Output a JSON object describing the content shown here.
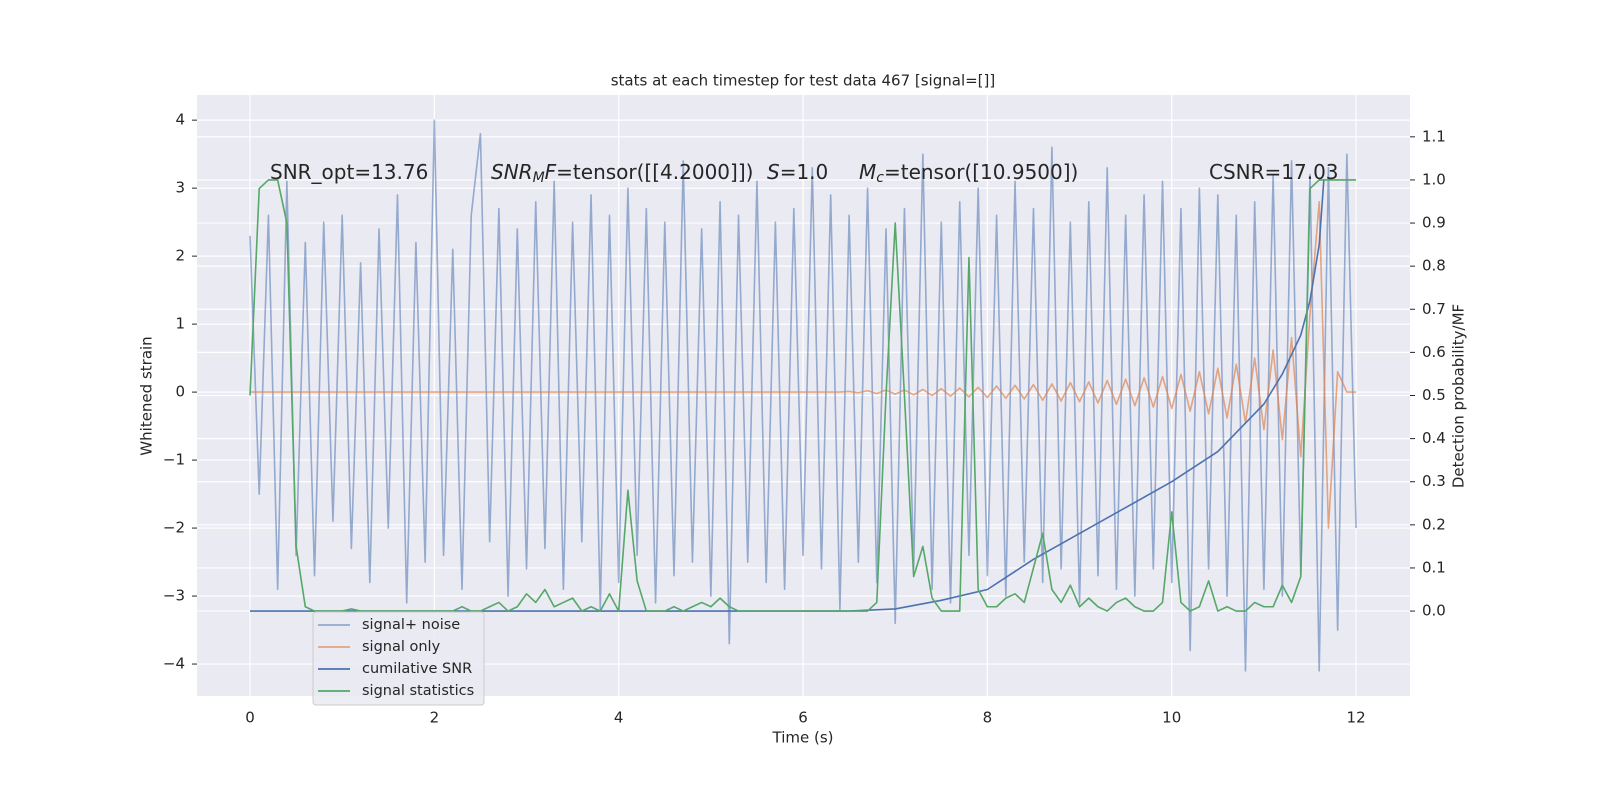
{
  "chart_data": {
    "type": "line",
    "title": "stats at each timestep for test data 467 [signal=[]]",
    "xlabel": "Time (s)",
    "ylabel": "Whitened strain",
    "y2label": "Detection probability/MF",
    "xlim": [
      -0.575,
      12.585
    ],
    "xticks": [
      0,
      2,
      4,
      6,
      8,
      10,
      12
    ],
    "ylim": [
      -4.47,
      4.37
    ],
    "yticks": [
      {
        "value": -4,
        "label": "−4"
      },
      {
        "value": -3,
        "label": "−3"
      },
      {
        "value": -2,
        "label": "−2"
      },
      {
        "value": -1,
        "label": "−1"
      },
      0,
      1,
      2,
      3,
      4
    ],
    "y2lim": [
      -0.197,
      1.197
    ],
    "y2ticks": [
      {
        "value": 0,
        "label": "0.0"
      },
      0.1,
      0.2,
      0.3,
      0.4,
      0.5,
      0.6,
      0.7,
      0.8,
      0.9,
      {
        "value": 1,
        "label": "1.0"
      },
      1.1
    ],
    "grid": true,
    "legend": "lower left",
    "x": [
      0,
      0.1,
      0.2,
      0.3,
      0.4,
      0.5,
      0.6,
      0.7,
      0.8,
      0.9,
      1,
      1.1,
      1.2,
      1.3,
      1.4,
      1.5,
      1.6,
      1.7,
      1.8,
      1.9,
      2,
      2.1,
      2.2,
      2.3,
      2.4,
      2.5,
      2.6,
      2.7,
      2.8,
      2.9,
      3,
      3.1,
      3.2,
      3.3,
      3.4,
      3.5,
      3.6,
      3.7,
      3.8,
      3.9,
      4,
      4.1,
      4.2,
      4.3,
      4.4,
      4.5,
      4.6,
      4.7,
      4.8,
      4.9,
      5,
      5.1,
      5.2,
      5.3,
      5.4,
      5.5,
      5.6,
      5.7,
      5.8,
      5.9,
      6,
      6.1,
      6.2,
      6.3,
      6.4,
      6.5,
      6.6,
      6.7,
      6.8,
      6.9,
      7,
      7.1,
      7.2,
      7.3,
      7.4,
      7.5,
      7.6,
      7.7,
      7.8,
      7.9,
      8,
      8.1,
      8.2,
      8.3,
      8.4,
      8.5,
      8.6,
      8.7,
      8.8,
      8.9,
      9,
      9.1,
      9.2,
      9.3,
      9.4,
      9.5,
      9.6,
      9.7,
      9.8,
      9.9,
      10,
      10.1,
      10.2,
      10.3,
      10.4,
      10.5,
      10.6,
      10.7,
      10.8,
      10.9,
      11,
      11.1,
      11.2,
      11.3,
      11.4,
      11.5,
      11.6,
      11.7,
      11.8,
      11.9,
      12
    ],
    "series": [
      {
        "name": "signal+ noise",
        "color": "#4c72b0",
        "opacity": 0.55,
        "values": [
          2.3,
          -1.5,
          2.6,
          -2.9,
          3.1,
          -2.4,
          2.2,
          -2.7,
          2.5,
          -1.9,
          2.6,
          -2.3,
          1.9,
          -2.8,
          2.4,
          -2.0,
          2.9,
          -3.1,
          2.2,
          -2.5,
          4.0,
          -2.4,
          2.1,
          -2.9,
          2.6,
          3.8,
          -2.2,
          2.7,
          -3.0,
          2.4,
          -2.6,
          2.8,
          -2.3,
          3.1,
          -2.9,
          2.5,
          -2.2,
          2.9,
          -3.2,
          2.6,
          -2.8,
          3.0,
          -2.4,
          2.7,
          -3.1,
          2.5,
          -2.7,
          3.4,
          -2.5,
          2.4,
          -3.0,
          2.8,
          -3.7,
          2.6,
          -2.5,
          3.1,
          -2.8,
          2.5,
          -2.9,
          2.7,
          -2.4,
          3.3,
          -2.6,
          2.9,
          -3.2,
          2.6,
          -2.5,
          3.0,
          -2.8,
          2.4,
          -3.4,
          2.7,
          -2.6,
          3.5,
          -2.9,
          2.5,
          -3.1,
          2.8,
          -2.4,
          3.0,
          -2.7,
          2.6,
          -3.0,
          3.1,
          -2.5,
          2.7,
          -2.8,
          3.6,
          -2.6,
          2.5,
          -3.1,
          2.8,
          -2.7,
          3.3,
          -2.9,
          2.6,
          -3.0,
          2.9,
          -2.6,
          3.1,
          -2.8,
          2.7,
          -3.8,
          3.0,
          -2.6,
          2.9,
          -3.0,
          2.6,
          -4.1,
          2.8,
          -2.9,
          3.2,
          -3.0,
          3.4,
          -2.7,
          3.2,
          -4.1,
          3.3,
          -3.5,
          3.5,
          -2.0
        ]
      },
      {
        "name": "signal only",
        "color": "#dd8452",
        "opacity": 0.7,
        "values": [
          0,
          0,
          0,
          0,
          0,
          0,
          0,
          0,
          0,
          0,
          0,
          0,
          0,
          0,
          0,
          0,
          0,
          0,
          0,
          0,
          0,
          0,
          0,
          0,
          0,
          0,
          0,
          0,
          0,
          0,
          0,
          0,
          0,
          0,
          0,
          0,
          0,
          0,
          0,
          0,
          0,
          0,
          0,
          0,
          0,
          0,
          0,
          0,
          0,
          0,
          0,
          0,
          0,
          0,
          0,
          0,
          0,
          0,
          0,
          0,
          0,
          0,
          0,
          0,
          0,
          0.01,
          -0.01,
          0.02,
          -0.02,
          0.03,
          -0.03,
          0.03,
          -0.04,
          0.04,
          -0.05,
          0.05,
          -0.06,
          0.06,
          -0.07,
          0.07,
          -0.08,
          0.09,
          -0.09,
          0.1,
          -0.1,
          0.11,
          -0.12,
          0.12,
          -0.13,
          0.14,
          -0.14,
          0.15,
          -0.16,
          0.17,
          -0.18,
          0.19,
          -0.2,
          0.21,
          -0.22,
          0.23,
          -0.24,
          0.26,
          -0.28,
          0.3,
          -0.32,
          0.35,
          -0.38,
          0.41,
          -0.45,
          0.5,
          -0.55,
          0.62,
          -0.7,
          0.8,
          -0.95,
          1.15,
          2.8,
          -2.0,
          0.3,
          0,
          0
        ]
      },
      {
        "name": "cumilative SNR",
        "color": "#4c72b0",
        "axis": "y2",
        "x": [
          0,
          6.5,
          7,
          7.5,
          8,
          8.5,
          9,
          9.5,
          10,
          10.5,
          11,
          11.2,
          11.4,
          11.5,
          11.6,
          11.65
        ],
        "values": [
          0,
          0,
          0.005,
          0.025,
          0.05,
          0.12,
          0.18,
          0.24,
          0.3,
          0.37,
          0.48,
          0.55,
          0.64,
          0.72,
          0.85,
          1.0
        ]
      },
      {
        "name": "signal statistics",
        "color": "#55a868",
        "axis": "y2",
        "values": [
          0.5,
          0.98,
          1.0,
          1.0,
          0.9,
          0.15,
          0.01,
          0,
          0,
          0,
          0,
          0.005,
          0,
          0,
          0,
          0,
          0,
          0,
          0,
          0,
          0,
          0,
          0,
          0.01,
          0,
          0,
          0.01,
          0.02,
          0,
          0.01,
          0.04,
          0.02,
          0.05,
          0.01,
          0.02,
          0.03,
          0,
          0.01,
          0,
          0.04,
          0,
          0.28,
          0.07,
          0,
          0,
          0,
          0.01,
          0,
          0.01,
          0.02,
          0.01,
          0.03,
          0.01,
          0,
          0,
          0,
          0,
          0,
          0,
          0,
          0,
          0,
          0,
          0,
          0,
          0,
          0,
          0,
          0.02,
          0.5,
          0.9,
          0.5,
          0.08,
          0.15,
          0.03,
          0,
          0,
          0,
          0.82,
          0.05,
          0.01,
          0.01,
          0.03,
          0.04,
          0.02,
          0.1,
          0.18,
          0.05,
          0.02,
          0.06,
          0.01,
          0.03,
          0.01,
          0,
          0.02,
          0.03,
          0.01,
          0,
          0,
          0.02,
          0.23,
          0.02,
          0,
          0.01,
          0.07,
          0,
          0.01,
          0,
          0,
          0.02,
          0.01,
          0.01,
          0.06,
          0.02,
          0.08,
          0.98,
          1.0,
          1.0,
          1.0,
          1.0,
          1.0
        ]
      }
    ],
    "annotations": [
      {
        "parts": [
          {
            "text": "SNR_opt=13.76"
          }
        ]
      },
      {
        "parts": [
          {
            "text": "SNR",
            "italic": true
          },
          {
            "text": "M",
            "italic": true,
            "sub": true
          },
          {
            "text": "F",
            "italic": true
          },
          {
            "text": "=tensor([[4.2000]])"
          }
        ]
      },
      {
        "parts": [
          {
            "text": "S",
            "italic": true
          },
          {
            "text": "=1.0"
          }
        ]
      },
      {
        "parts": [
          {
            "text": "M",
            "italic": true
          },
          {
            "text": "c",
            "italic": true,
            "sub": true
          },
          {
            "text": "=tensor([10.9500])"
          }
        ]
      },
      {
        "parts": [
          {
            "text": "CSNR=17.03"
          }
        ]
      }
    ]
  }
}
